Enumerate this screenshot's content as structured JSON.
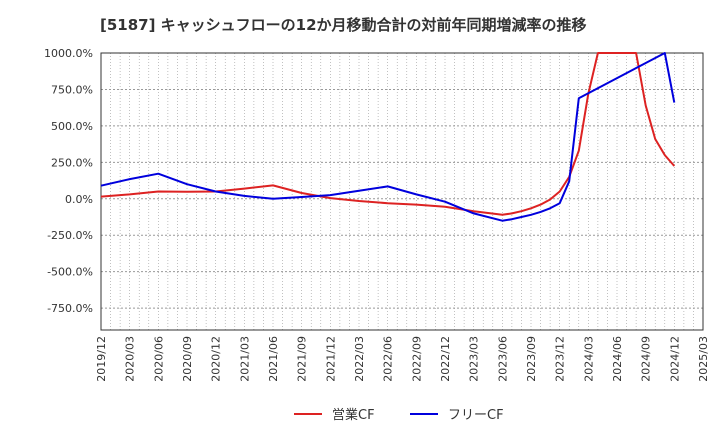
{
  "chart_data": {
    "type": "line",
    "title": "[5187]  キャッシュフローの12か月移動合計の対前年同期増減率の推移",
    "xlabel": "",
    "ylabel": "",
    "ylim": [
      -900,
      1000
    ],
    "yticks": [
      1000,
      750,
      500,
      250,
      0,
      -250,
      -500,
      -750
    ],
    "ytick_labels": [
      "1000.0%",
      "750.0%",
      "500.0%",
      "250.0%",
      "0.0%",
      "-250.0%",
      "-500.0%",
      "-750.0%"
    ],
    "x_start": "2019-12",
    "x_end": "2025-03",
    "categories": [
      "2019/12",
      "2020/03",
      "2020/06",
      "2020/09",
      "2020/12",
      "2021/03",
      "2021/06",
      "2021/09",
      "2021/12",
      "2022/03",
      "2022/06",
      "2022/09",
      "2022/12",
      "2023/03",
      "2023/06",
      "2023/09",
      "2023/12",
      "2024/03",
      "2024/06",
      "2024/09",
      "2024/12",
      "2025/03"
    ],
    "grid": true,
    "legend_position": "bottom",
    "series": [
      {
        "name": "営業CF",
        "color": "#dd2222",
        "points": [
          {
            "x": "2019-12",
            "y": 15
          },
          {
            "x": "2020-03",
            "y": 30
          },
          {
            "x": "2020-06",
            "y": 50
          },
          {
            "x": "2020-09",
            "y": 48
          },
          {
            "x": "2020-12",
            "y": 50
          },
          {
            "x": "2021-03",
            "y": 70
          },
          {
            "x": "2021-06",
            "y": 92
          },
          {
            "x": "2021-09",
            "y": 40
          },
          {
            "x": "2021-12",
            "y": 5
          },
          {
            "x": "2022-03",
            "y": -15
          },
          {
            "x": "2022-06",
            "y": -30
          },
          {
            "x": "2022-09",
            "y": -40
          },
          {
            "x": "2022-12",
            "y": -55
          },
          {
            "x": "2023-03",
            "y": -85
          },
          {
            "x": "2023-06",
            "y": -110
          },
          {
            "x": "2023-07",
            "y": -100
          },
          {
            "x": "2023-08",
            "y": -85
          },
          {
            "x": "2023-09",
            "y": -65
          },
          {
            "x": "2023-10",
            "y": -40
          },
          {
            "x": "2023-11",
            "y": -5
          },
          {
            "x": "2023-12",
            "y": 50
          },
          {
            "x": "2024-01",
            "y": 150
          },
          {
            "x": "2024-02",
            "y": 330
          },
          {
            "x": "2024-03",
            "y": 720
          },
          {
            "x": "2024-04",
            "y": 1000,
            "clipped": true
          },
          {
            "x": "2024-08",
            "y": 1000,
            "clipped": true
          },
          {
            "x": "2024-09",
            "y": 640
          },
          {
            "x": "2024-10",
            "y": 410
          },
          {
            "x": "2024-11",
            "y": 300
          },
          {
            "x": "2024-12",
            "y": 225
          }
        ]
      },
      {
        "name": "フリーCF",
        "color": "#0000dd",
        "points": [
          {
            "x": "2019-12",
            "y": 90
          },
          {
            "x": "2020-03",
            "y": 135
          },
          {
            "x": "2020-06",
            "y": 172
          },
          {
            "x": "2020-09",
            "y": 100
          },
          {
            "x": "2020-12",
            "y": 50
          },
          {
            "x": "2021-03",
            "y": 20
          },
          {
            "x": "2021-06",
            "y": 0
          },
          {
            "x": "2021-09",
            "y": 12
          },
          {
            "x": "2021-12",
            "y": 25
          },
          {
            "x": "2022-03",
            "y": 55
          },
          {
            "x": "2022-06",
            "y": 85
          },
          {
            "x": "2022-09",
            "y": 30
          },
          {
            "x": "2022-12",
            "y": -20
          },
          {
            "x": "2023-03",
            "y": -100
          },
          {
            "x": "2023-06",
            "y": -150
          },
          {
            "x": "2023-07",
            "y": -140
          },
          {
            "x": "2023-08",
            "y": -125
          },
          {
            "x": "2023-09",
            "y": -110
          },
          {
            "x": "2023-10",
            "y": -90
          },
          {
            "x": "2023-11",
            "y": -65
          },
          {
            "x": "2023-12",
            "y": -30
          },
          {
            "x": "2024-01",
            "y": 120
          },
          {
            "x": "2024-02",
            "y": 690
          },
          {
            "x": "2024-11",
            "y": 1000,
            "clipped": true
          },
          {
            "x": "2024-12",
            "y": 660
          }
        ]
      }
    ]
  }
}
